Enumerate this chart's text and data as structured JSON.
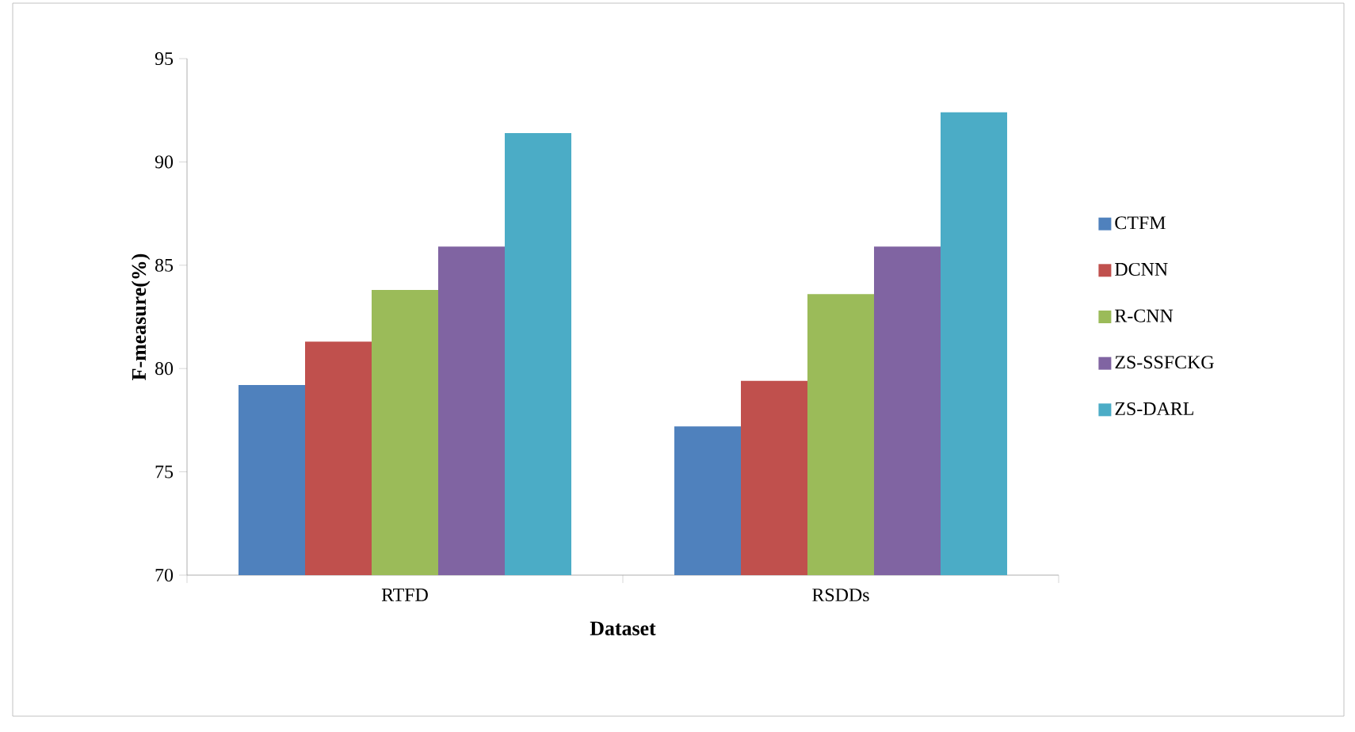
{
  "chart_data": {
    "type": "bar",
    "xlabel": "Dataset",
    "ylabel": "F-measure(%)",
    "categories": [
      "RTFD",
      "RSDDs"
    ],
    "series": [
      {
        "name": "CTFM",
        "color": "#4f81bd",
        "values": [
          79.2,
          77.2
        ]
      },
      {
        "name": "DCNN",
        "color": "#c0504d",
        "values": [
          81.3,
          79.4
        ]
      },
      {
        "name": "R-CNN",
        "color": "#9bbb59",
        "values": [
          83.8,
          83.6
        ]
      },
      {
        "name": "ZS-SSFCKG",
        "color": "#8064a2",
        "values": [
          85.9,
          85.9
        ]
      },
      {
        "name": "ZS-DARL",
        "color": "#4bacc6",
        "values": [
          91.4,
          92.4
        ]
      }
    ],
    "ylim": [
      70,
      95
    ],
    "yticks": [
      70,
      75,
      80,
      85,
      90,
      95
    ],
    "grid": false,
    "legend": "right"
  }
}
